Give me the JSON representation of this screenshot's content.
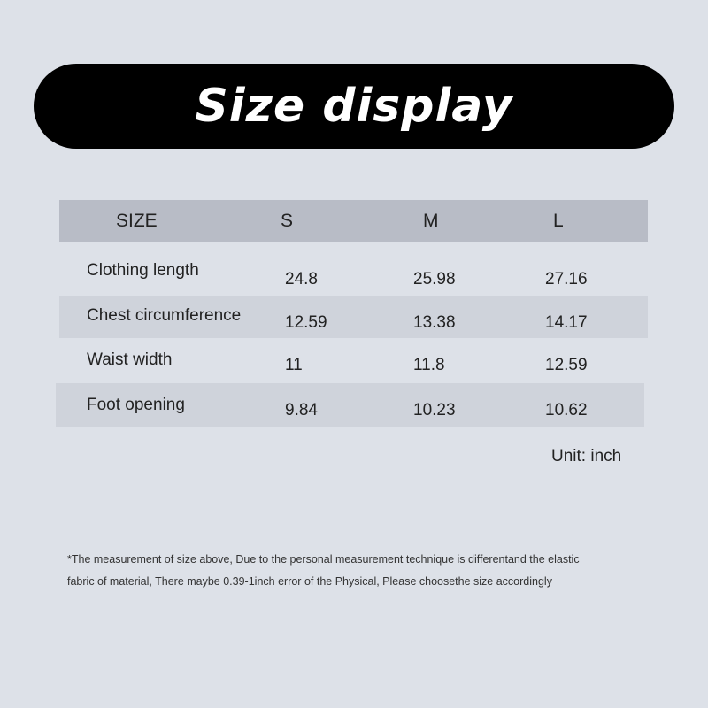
{
  "title": "Size display",
  "table": {
    "headers": [
      "SIZE",
      "S",
      "M",
      "L"
    ],
    "rows": [
      {
        "label": "Clothing length",
        "values": [
          "24.8",
          "25.98",
          "27.16"
        ]
      },
      {
        "label": "Chest circumference",
        "values": [
          "12.59",
          "13.38",
          "14.17"
        ]
      },
      {
        "label": "Waist width",
        "values": [
          "11",
          "11.8",
          "12.59"
        ]
      },
      {
        "label": "Foot opening",
        "values": [
          "9.84",
          "10.23",
          "10.62"
        ]
      }
    ]
  },
  "unit": "Unit: inch",
  "note": {
    "line1": "*The measurement of size above, Due to the personal measurement technique is differentand the elastic",
    "line2": "fabric of material, There maybe 0.39-1inch error of the Physical, Please choosethe size accordingly"
  }
}
